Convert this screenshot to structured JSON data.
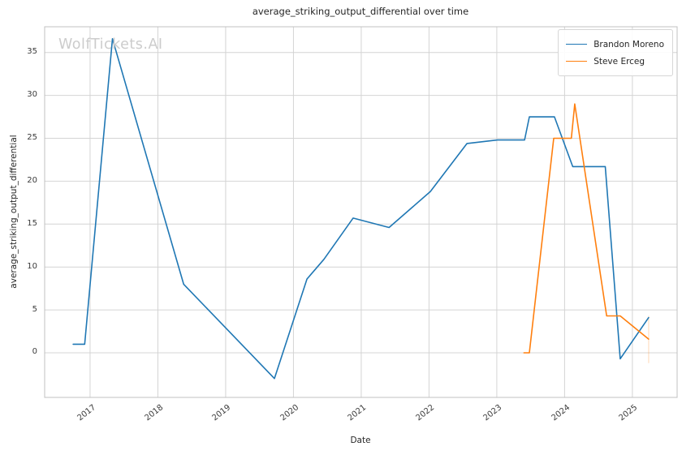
{
  "chart_data": {
    "type": "line",
    "title": "average_striking_output_differential over time",
    "xlabel": "Date",
    "ylabel": "average_striking_output_differential",
    "watermark": "WolfTickets.AI",
    "grid": true,
    "legend_position": "upper right",
    "xlim": [
      2016.33,
      2025.66
    ],
    "ylim": [
      -5.2,
      38.0
    ],
    "x_ticks": [
      "2017",
      "2018",
      "2019",
      "2020",
      "2021",
      "2022",
      "2023",
      "2024",
      "2025"
    ],
    "x_tick_values": [
      2017,
      2018,
      2019,
      2020,
      2021,
      2022,
      2023,
      2024,
      2025
    ],
    "y_ticks": [
      "0",
      "5",
      "10",
      "15",
      "20",
      "25",
      "30",
      "35"
    ],
    "y_tick_values": [
      0,
      5,
      10,
      15,
      20,
      25,
      30,
      35
    ],
    "grid_color": "#d4d4d4",
    "spine_color": "#c0c0c0",
    "series": [
      {
        "name": "Brandon Moreno",
        "color": "#1f77b4",
        "x": [
          2016.75,
          2016.92,
          2017.33,
          2018.38,
          2019.72,
          2020.2,
          2020.45,
          2020.88,
          2021.41,
          2022.02,
          2022.56,
          2023.01,
          2023.41,
          2023.48,
          2023.85,
          2024.12,
          2024.6,
          2024.82,
          2025.24
        ],
        "y": [
          1.0,
          1.0,
          36.6,
          8.0,
          -3.0,
          8.6,
          10.9,
          15.7,
          14.6,
          18.8,
          24.4,
          24.8,
          24.8,
          27.5,
          27.5,
          21.7,
          21.7,
          -0.7,
          4.1
        ]
      },
      {
        "name": "Steve Erceg",
        "color": "#ff7f0e",
        "x": [
          2023.4,
          2023.48,
          2023.84,
          2024.1,
          2024.15,
          2024.62,
          2024.82,
          2025.24
        ],
        "y": [
          0.0,
          0.0,
          25.0,
          25.0,
          29.0,
          4.3,
          4.3,
          1.6
        ]
      }
    ],
    "end_marker": {
      "x": 2025.24,
      "y_top": 4.3,
      "y_bottom": -1.2,
      "color": "#ff7f0e",
      "opacity": 0.25
    }
  }
}
